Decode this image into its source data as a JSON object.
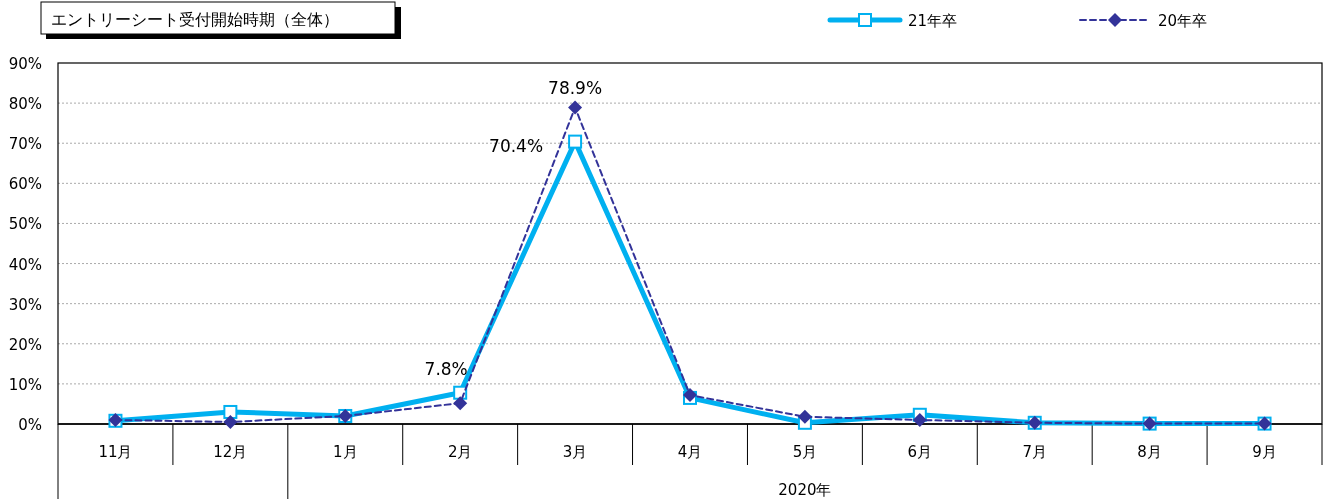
{
  "chart_data": {
    "type": "line",
    "title": "エントリーシート受付開始時期（全体）",
    "xlabel": "2020年",
    "categories": [
      "11月",
      "12月",
      "1月",
      "2月",
      "3月",
      "4月",
      "5月",
      "6月",
      "7月",
      "8月",
      "9月"
    ],
    "series": [
      {
        "name": "21年卒",
        "color": "#00b0f0",
        "marker": "square",
        "line_style": "solid",
        "values": [
          0.8,
          3.0,
          2.0,
          7.8,
          70.4,
          6.5,
          0.3,
          2.3,
          0.3,
          0.1,
          0.1
        ],
        "value_labels": [
          null,
          null,
          null,
          "7.8%",
          "70.4%",
          null,
          null,
          null,
          null,
          null,
          null
        ]
      },
      {
        "name": "20年卒",
        "color": "#333399",
        "marker": "diamond",
        "line_style": "dashed",
        "values": [
          1.0,
          0.5,
          2.0,
          5.2,
          78.9,
          7.2,
          1.8,
          1.0,
          0.3,
          0.1,
          0.1
        ],
        "value_labels": [
          null,
          null,
          null,
          null,
          "78.9%",
          null,
          null,
          null,
          null,
          null,
          null
        ]
      }
    ],
    "ylim": [
      0,
      90
    ],
    "yticks": [
      {
        "value": 0,
        "label": "0%"
      },
      {
        "value": 10,
        "label": "10%"
      },
      {
        "value": 20,
        "label": "20%"
      },
      {
        "value": 30,
        "label": "30%"
      },
      {
        "value": 40,
        "label": "40%"
      },
      {
        "value": 50,
        "label": "50%"
      },
      {
        "value": 60,
        "label": "60%"
      },
      {
        "value": 70,
        "label": "70%"
      },
      {
        "value": 80,
        "label": "80%"
      },
      {
        "value": 90,
        "label": "90%"
      }
    ],
    "grid": "y",
    "legend": "top right"
  }
}
